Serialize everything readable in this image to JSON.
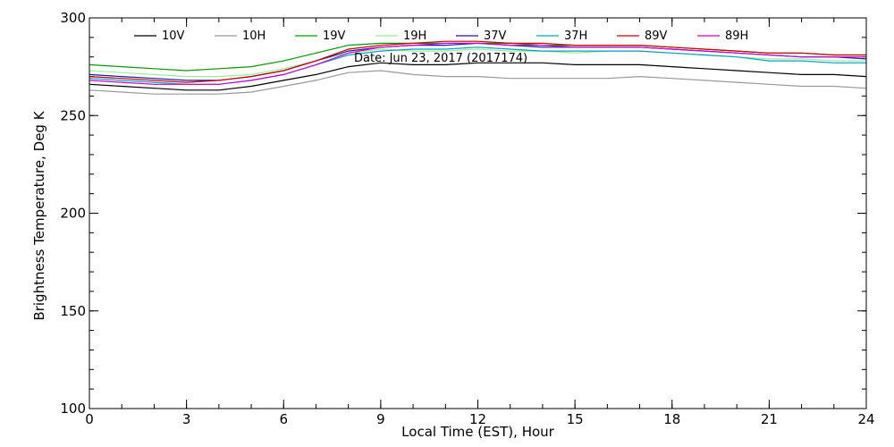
{
  "chart_data": {
    "type": "line",
    "title": "",
    "annotation": "Date: Jun 23, 2017 (2017174)",
    "xlabel": "Local Time (EST), Hour",
    "ylabel": "Brightness Temperature, Deg K",
    "xlim": [
      0,
      24
    ],
    "ylim": [
      100,
      300
    ],
    "xticks": [
      0,
      3,
      6,
      9,
      12,
      15,
      18,
      21,
      24
    ],
    "yticks": [
      100,
      150,
      200,
      250,
      300
    ],
    "x_minor_step": 1,
    "y_minor_step": 10,
    "grid": false,
    "legend_placement": "top",
    "x": [
      0,
      1,
      2,
      3,
      4,
      5,
      6,
      7,
      8,
      9,
      10,
      11,
      12,
      13,
      14,
      15,
      16,
      17,
      18,
      19,
      20,
      21,
      22,
      23,
      24
    ],
    "series": [
      {
        "name": "10V",
        "color": "#000000",
        "values": [
          266,
          265,
          264,
          263,
          263,
          265,
          268,
          271,
          275,
          277,
          276,
          276,
          277,
          277,
          277,
          276,
          276,
          276,
          275,
          274,
          273,
          272,
          271,
          271,
          270
        ]
      },
      {
        "name": "10H",
        "color": "#999999",
        "values": [
          263,
          262,
          261,
          261,
          261,
          262,
          265,
          268,
          272,
          273,
          271,
          270,
          270,
          269,
          269,
          269,
          269,
          270,
          269,
          268,
          267,
          266,
          265,
          265,
          264
        ]
      },
      {
        "name": "19V",
        "color": "#009900",
        "values": [
          276,
          275,
          274,
          273,
          274,
          275,
          278,
          282,
          286,
          287,
          287,
          287,
          287,
          287,
          286,
          286,
          286,
          286,
          285,
          284,
          283,
          282,
          282,
          281,
          281
        ]
      },
      {
        "name": "19H",
        "color": "#99ee99",
        "values": [
          273,
          272,
          271,
          270,
          270,
          271,
          274,
          278,
          282,
          284,
          283,
          283,
          284,
          283,
          283,
          282,
          283,
          283,
          282,
          281,
          280,
          279,
          279,
          278,
          278
        ]
      },
      {
        "name": "37V",
        "color": "#1a1aa8",
        "values": [
          271,
          270,
          269,
          268,
          268,
          270,
          273,
          278,
          283,
          285,
          286,
          286,
          287,
          286,
          285,
          285,
          285,
          285,
          284,
          283,
          282,
          281,
          280,
          280,
          279
        ]
      },
      {
        "name": "37H",
        "color": "#00a0c8",
        "values": [
          269,
          268,
          267,
          266,
          266,
          268,
          271,
          276,
          281,
          283,
          284,
          284,
          285,
          284,
          283,
          283,
          283,
          283,
          282,
          281,
          280,
          278,
          278,
          277,
          277
        ]
      },
      {
        "name": "89V",
        "color": "#cc0000",
        "values": [
          270,
          269,
          268,
          267,
          268,
          270,
          273,
          278,
          284,
          286,
          287,
          288,
          288,
          287,
          287,
          286,
          286,
          286,
          285,
          284,
          283,
          282,
          282,
          281,
          281
        ]
      },
      {
        "name": "89H",
        "color": "#cc00cc",
        "values": [
          268,
          267,
          266,
          266,
          266,
          268,
          271,
          276,
          282,
          285,
          286,
          287,
          287,
          286,
          286,
          285,
          285,
          285,
          284,
          283,
          282,
          281,
          280,
          280,
          280
        ]
      }
    ]
  }
}
